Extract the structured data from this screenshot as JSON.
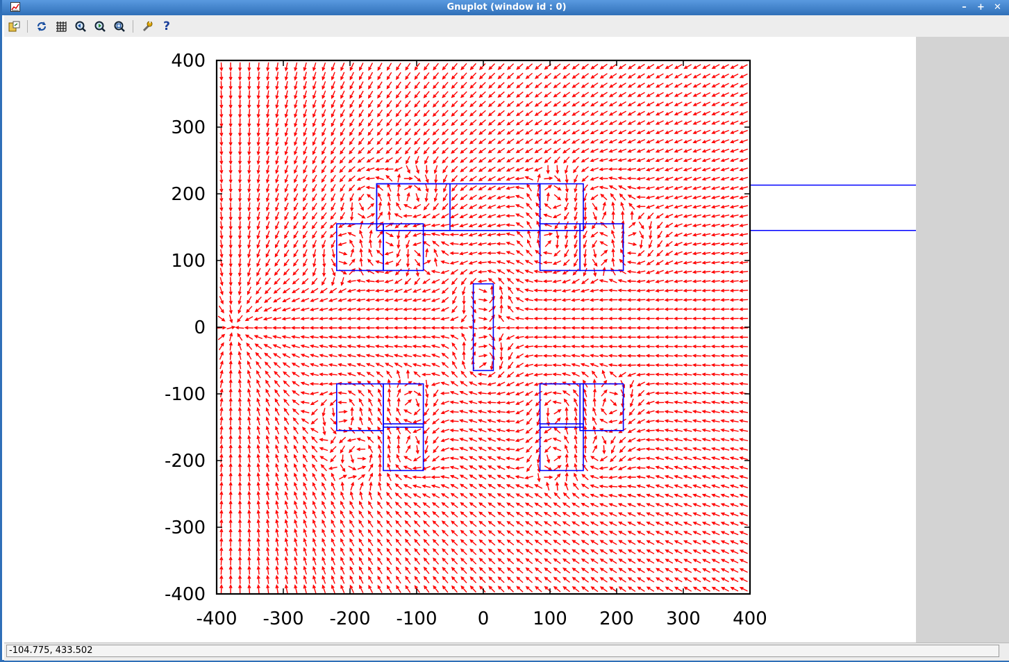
{
  "window": {
    "title": "Gnuplot (window id : 0)",
    "controls": [
      "minimize",
      "maximize",
      "close"
    ]
  },
  "toolbar": {
    "buttons": [
      {
        "name": "export",
        "icon": "export-icon"
      },
      {
        "name": "replot",
        "icon": "replot-icon"
      },
      {
        "name": "grid",
        "icon": "grid-icon"
      },
      {
        "name": "zoom-previous",
        "icon": "zoom-previous-icon"
      },
      {
        "name": "zoom-next",
        "icon": "zoom-next-icon"
      },
      {
        "name": "autoscale",
        "icon": "autoscale-icon"
      },
      {
        "name": "config",
        "icon": "wrench-icon"
      },
      {
        "name": "help",
        "icon": "help-icon",
        "label": "?"
      }
    ]
  },
  "status": {
    "coordinates": "-104.775,  433.502"
  },
  "colors": {
    "vectors": "#ff0000",
    "outlines": "#0000ff",
    "titlebar": "#2f6fb8",
    "side_panel": "#d3d3d3"
  },
  "chart_data": {
    "type": "vector-field",
    "title": "",
    "xlabel": "",
    "ylabel": "",
    "xlim": [
      -400,
      400
    ],
    "ylim": [
      -400,
      400
    ],
    "xticks": [
      -400,
      -300,
      -200,
      -100,
      0,
      100,
      200,
      300,
      400
    ],
    "yticks": [
      -400,
      -300,
      -200,
      -100,
      0,
      100,
      200,
      300,
      400
    ],
    "x_tick_labels": [
      "-400",
      "-300",
      "-200",
      "-100",
      "0",
      "100",
      "200",
      "300",
      "400"
    ],
    "y_tick_labels": [
      "-400",
      "-300",
      "-200",
      "-100",
      "0",
      "100",
      "200",
      "300",
      "400"
    ],
    "grid": false,
    "sink_point": [
      -375,
      0
    ],
    "vector_color": "#ff0000",
    "outline_color": "#0000ff",
    "rectangles": [
      {
        "x0": -160,
        "y0": 145,
        "x1": -50,
        "y1": 215
      },
      {
        "x0": -220,
        "y0": 85,
        "x1": -150,
        "y1": 155
      },
      {
        "x0": -150,
        "y0": 85,
        "x1": -90,
        "y1": 155
      },
      {
        "x0": -160,
        "y0": 145,
        "x1": 85,
        "y1": 215
      },
      {
        "x0": 85,
        "y0": 145,
        "x1": 150,
        "y1": 215
      },
      {
        "x0": 85,
        "y0": 85,
        "x1": 145,
        "y1": 155
      },
      {
        "x0": 145,
        "y0": 85,
        "x1": 210,
        "y1": 155
      },
      {
        "x0": -15,
        "y0": -65,
        "x1": 15,
        "y1": 65
      },
      {
        "x0": -220,
        "y0": -155,
        "x1": -150,
        "y1": -85
      },
      {
        "x0": -150,
        "y0": -150,
        "x1": -90,
        "y1": -85
      },
      {
        "x0": -150,
        "y0": -215,
        "x1": -90,
        "y1": -145
      },
      {
        "x0": 85,
        "y0": -150,
        "x1": 150,
        "y1": -85
      },
      {
        "x0": 145,
        "y0": -155,
        "x1": 210,
        "y1": -85
      },
      {
        "x0": 85,
        "y0": -215,
        "x1": 150,
        "y1": -145
      }
    ],
    "guide_lines_y": [
      213,
      145
    ],
    "vortices": [
      [
        -175,
        190
      ],
      [
        -105,
        190
      ],
      [
        -210,
        120
      ],
      [
        -140,
        120
      ],
      [
        -100,
        120
      ],
      [
        110,
        190
      ],
      [
        170,
        190
      ],
      [
        100,
        120
      ],
      [
        180,
        120
      ],
      [
        220,
        120
      ],
      [
        0,
        60
      ],
      [
        0,
        -60
      ],
      [
        -210,
        -120
      ],
      [
        -110,
        -120
      ],
      [
        -180,
        -190
      ],
      [
        -110,
        -190
      ],
      [
        110,
        -120
      ],
      [
        190,
        -120
      ],
      [
        110,
        -190
      ],
      [
        170,
        -190
      ]
    ]
  }
}
